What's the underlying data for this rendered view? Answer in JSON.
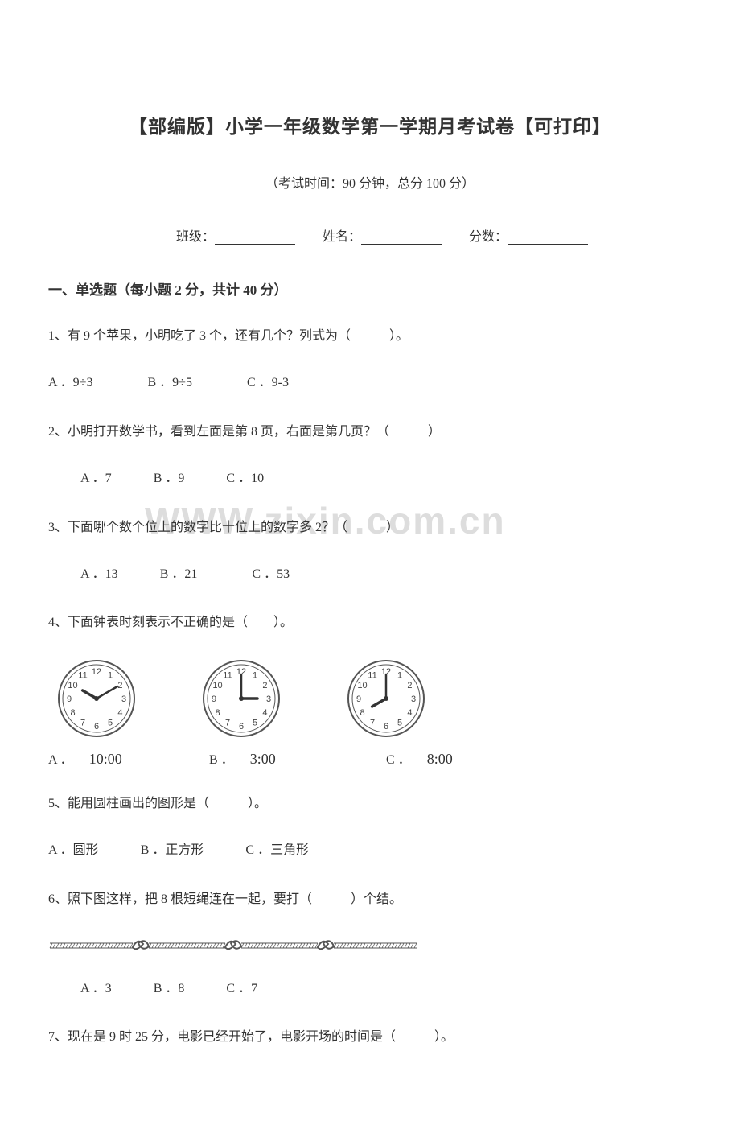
{
  "title": "【部编版】小学一年级数学第一学期月考试卷【可打印】",
  "subtitle": "（考试时间：90 分钟，总分 100 分）",
  "info": {
    "class_label": "班级：",
    "name_label": "姓名：",
    "score_label": "分数："
  },
  "watermark": "WWW.zixin.com.cn",
  "section1": {
    "header": "一、单选题（每小题 2 分，共计 40 分）",
    "q1": {
      "text": "1、有 9 个苹果，小明吃了 3 个，还有几个？列式为（　　　）。",
      "a": "A ．9÷3",
      "b": "B ．9÷5",
      "c": "C ．9-3"
    },
    "q2": {
      "text": "2、小明打开数学书，看到左面是第 8 页，右面是第几页？（　　　）",
      "a": "A ．7",
      "b": "B ．9",
      "c": "C ．10"
    },
    "q3": {
      "text": "3、下面哪个数个位上的数字比十位上的数字多 2？（　　　）",
      "a": "A ．13",
      "b": "B ．21",
      "c": "C ．53"
    },
    "q4": {
      "text": "4、下面钟表时刻表示不正确的是（　　）。",
      "clocks": [
        {
          "letter": "A ．",
          "time": "10:00",
          "hour_angle": 300,
          "minute_angle": 60
        },
        {
          "letter": "B ．",
          "time": "3:00",
          "hour_angle": 90,
          "minute_angle": 0
        },
        {
          "letter": "C ．",
          "time": "8:00",
          "hour_angle": 240,
          "minute_angle": 0
        }
      ],
      "clock_face_color": "#ffffff",
      "clock_border_color": "#555555",
      "clock_number_color": "#444444",
      "hand_color": "#333333"
    },
    "q5": {
      "text": "5、能用圆柱画出的图形是（　　　）。",
      "a": "A ．圆形",
      "b": "B ．正方形",
      "c": "C ．三角形"
    },
    "q6": {
      "text": "6、照下图这样，把 8 根短绳连在一起，要打（　　　）个结。",
      "a": "A ．3",
      "b": "B ．8",
      "c": "C ．7",
      "rope_color": "#555555",
      "rope_segments": 4,
      "rope_knots": 3
    },
    "q7": {
      "text": "7、现在是 9 时 25 分，电影已经开始了，电影开场的时间是（　　　）。"
    }
  }
}
